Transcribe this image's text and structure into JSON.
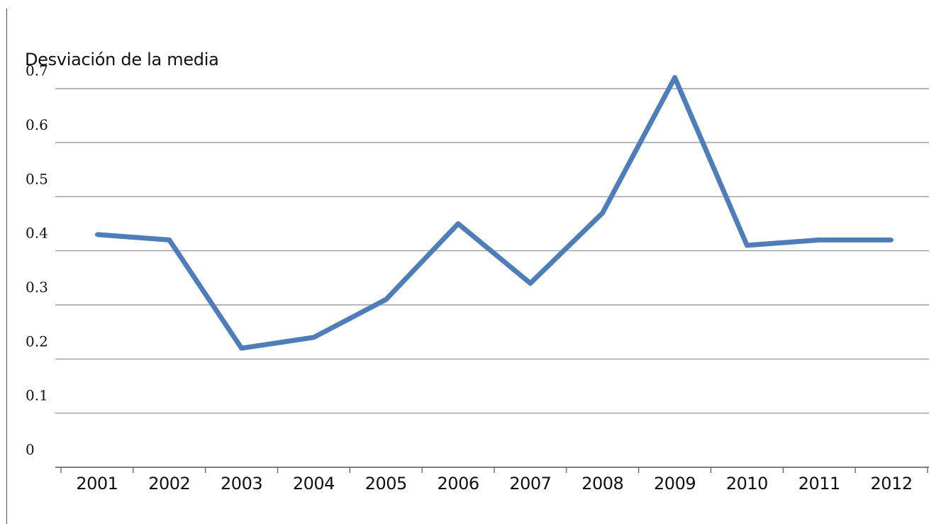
{
  "chart_data": {
    "type": "line",
    "title": "Desviación de la media",
    "xlabel": "",
    "ylabel": "",
    "categories": [
      "2001",
      "2002",
      "2003",
      "2004",
      "2005",
      "2006",
      "2007",
      "2008",
      "2009",
      "2010",
      "2011",
      "2012"
    ],
    "series": [
      {
        "values": [
          0.43,
          0.42,
          0.22,
          0.24,
          0.31,
          0.45,
          0.34,
          0.47,
          0.72,
          0.41,
          0.42,
          0.42
        ]
      }
    ],
    "y_ticks": [
      "0",
      "0.1",
      "0.2",
      "0.3",
      "0.4",
      "0.5",
      "0.6",
      "0.7"
    ],
    "ylim": [
      0,
      0.7
    ],
    "grid": true,
    "legend": "none",
    "colors": {
      "line": "#4F7DB8",
      "grid": "#8C8C8C",
      "axis": "#555555"
    }
  }
}
